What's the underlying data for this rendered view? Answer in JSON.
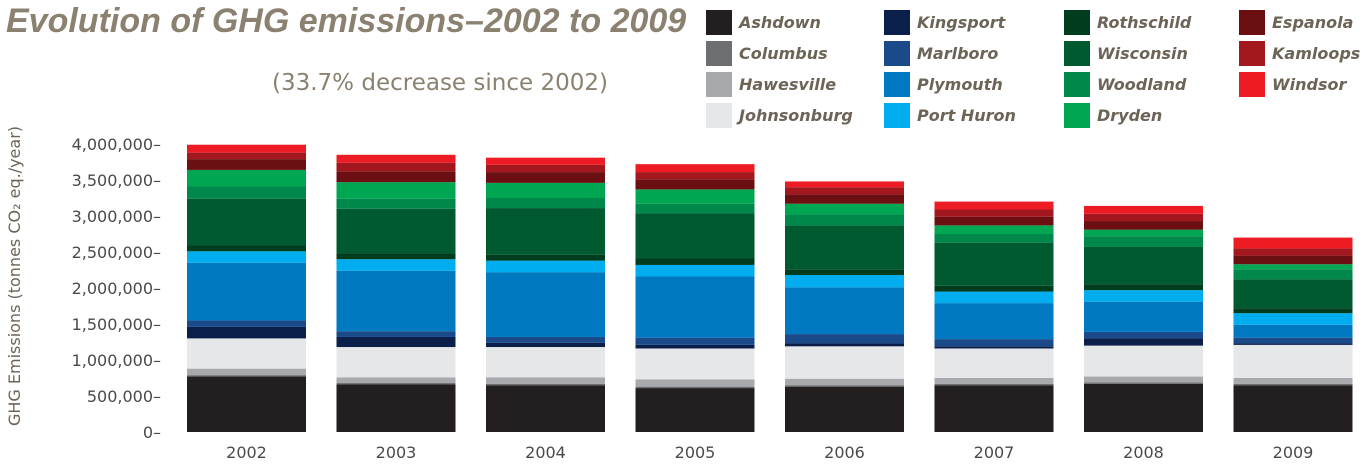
{
  "chart_data": {
    "type": "bar",
    "stacked": true,
    "title": "Evolution of GHG emissions–2002 to 2009",
    "subtitle": "(33.7% decrease since 2002)",
    "ylabel": "GHG Emissions (tonnes CO₂ eq./year)",
    "xlabel": "",
    "ylim": [
      0,
      4000000
    ],
    "yticks": [
      0,
      500000,
      1000000,
      1500000,
      2000000,
      2500000,
      3000000,
      3500000,
      4000000
    ],
    "ytick_labels": [
      "0–",
      "500,000–",
      "1,000,000–",
      "1,500,000–",
      "2,000,000–",
      "2,500,000–",
      "3,000,000–",
      "3,500,000–",
      "4,000,000–"
    ],
    "grid": false,
    "legend_position": "top-right",
    "categories": [
      "2002",
      "2003",
      "2004",
      "2005",
      "2006",
      "2007",
      "2008",
      "2009"
    ],
    "series": [
      {
        "name": "Ashdown",
        "color": "#231f20",
        "values": [
          770000,
          660000,
          650000,
          610000,
          630000,
          650000,
          670000,
          650000
        ]
      },
      {
        "name": "Columbus",
        "color": "#6d6e71",
        "values": [
          20000,
          20000,
          20000,
          20000,
          20000,
          20000,
          20000,
          20000
        ]
      },
      {
        "name": "Hawesville",
        "color": "#a7a9ac",
        "values": [
          90000,
          80000,
          90000,
          100000,
          90000,
          80000,
          80000,
          80000
        ]
      },
      {
        "name": "Johnsonburg",
        "color": "#e6e7e8",
        "values": [
          420000,
          420000,
          420000,
          430000,
          450000,
          410000,
          430000,
          460000
        ]
      },
      {
        "name": "Kingsport",
        "color": "#0b1f4b",
        "values": [
          160000,
          140000,
          60000,
          50000,
          40000,
          30000,
          100000,
          20000
        ]
      },
      {
        "name": "Marlboro",
        "color": "#1a4a8a",
        "values": [
          90000,
          80000,
          80000,
          100000,
          130000,
          100000,
          90000,
          80000
        ]
      },
      {
        "name": "Plymouth",
        "color": "#0079c1",
        "values": [
          800000,
          840000,
          900000,
          850000,
          650000,
          500000,
          420000,
          180000
        ]
      },
      {
        "name": "Port Huron",
        "color": "#00aeef",
        "values": [
          160000,
          160000,
          160000,
          160000,
          170000,
          160000,
          160000,
          160000
        ]
      },
      {
        "name": "Rothschild",
        "color": "#003d1e",
        "values": [
          80000,
          80000,
          80000,
          90000,
          80000,
          80000,
          80000,
          70000
        ]
      },
      {
        "name": "Wisconsin",
        "color": "#005a30",
        "values": [
          650000,
          620000,
          650000,
          630000,
          610000,
          600000,
          520000,
          400000
        ]
      },
      {
        "name": "Woodland",
        "color": "#00874a",
        "values": [
          170000,
          140000,
          140000,
          130000,
          150000,
          120000,
          150000,
          140000
        ]
      },
      {
        "name": "Dryden",
        "color": "#00a651",
        "values": [
          230000,
          230000,
          210000,
          200000,
          150000,
          120000,
          90000,
          70000
        ]
      },
      {
        "name": "Espanola",
        "color": "#6b0f12",
        "values": [
          150000,
          150000,
          150000,
          140000,
          130000,
          120000,
          120000,
          120000
        ]
      },
      {
        "name": "Kamloops",
        "color": "#a3181e",
        "values": [
          90000,
          120000,
          100000,
          100000,
          100000,
          100000,
          100000,
          100000
        ]
      },
      {
        "name": "Windsor",
        "color": "#ed1c24",
        "values": [
          110000,
          110000,
          100000,
          110000,
          80000,
          110000,
          110000,
          150000
        ]
      }
    ]
  }
}
